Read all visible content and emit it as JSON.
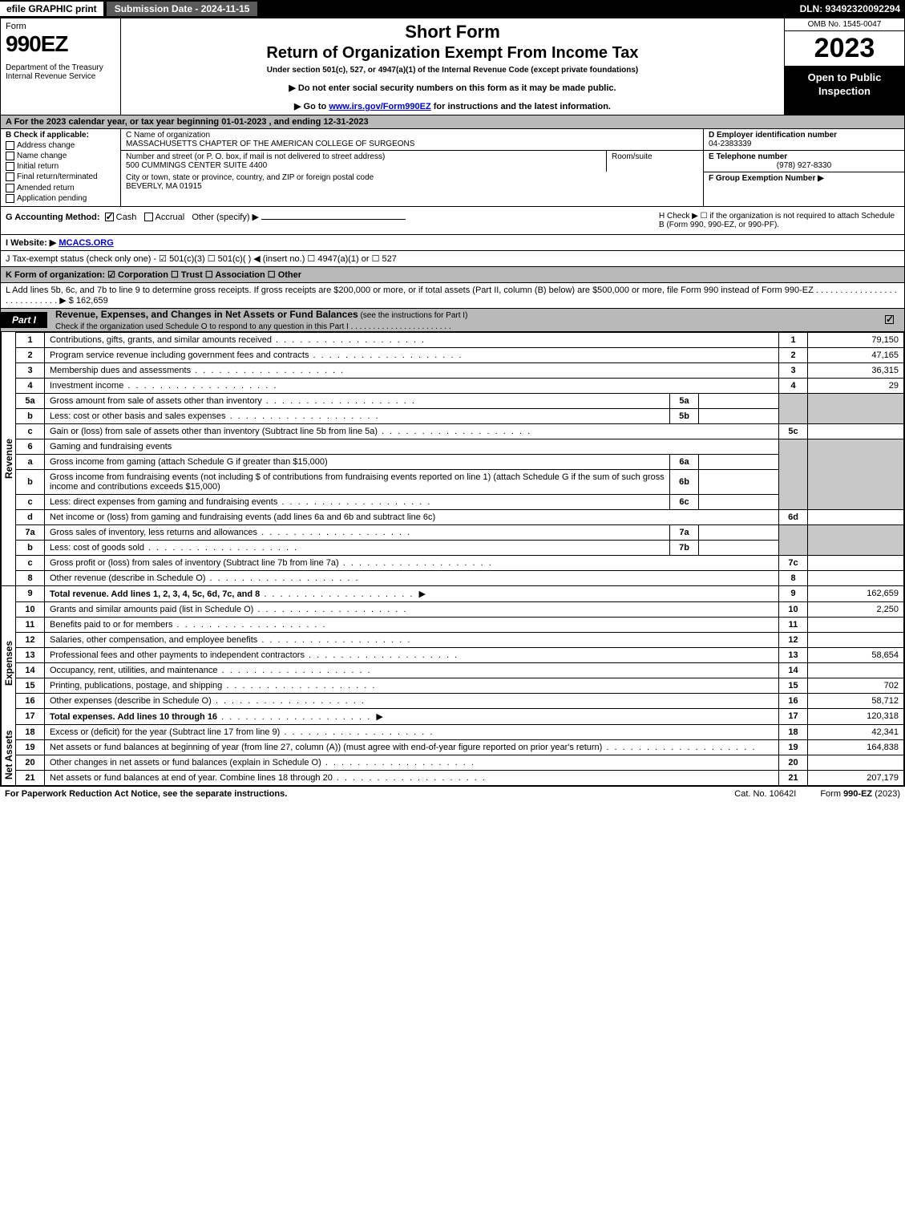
{
  "topbar": {
    "efile": "efile GRAPHIC print",
    "submission": "Submission Date - 2024-11-15",
    "dln": "DLN: 93492320092294"
  },
  "header": {
    "form_word": "Form",
    "form_number": "990EZ",
    "dept": "Department of the Treasury\nInternal Revenue Service",
    "short_form": "Short Form",
    "return_title": "Return of Organization Exempt From Income Tax",
    "subtitle": "Under section 501(c), 527, or 4947(a)(1) of the Internal Revenue Code (except private foundations)",
    "note1": "▶ Do not enter social security numbers on this form as it may be made public.",
    "note2_pre": "▶ Go to ",
    "note2_link": "www.irs.gov/Form990EZ",
    "note2_post": " for instructions and the latest information.",
    "omb": "OMB No. 1545-0047",
    "year": "2023",
    "open": "Open to Public Inspection"
  },
  "row_a": "A  For the 2023 calendar year, or tax year beginning 01-01-2023  , and ending 12-31-2023",
  "col_b": {
    "title": "B  Check if applicable:",
    "items": [
      "Address change",
      "Name change",
      "Initial return",
      "Final return/terminated",
      "Amended return",
      "Application pending"
    ]
  },
  "col_c": {
    "name_label": "C Name of organization",
    "name": "MASSACHUSETTS CHAPTER OF THE AMERICAN COLLEGE OF SURGEONS",
    "street_label": "Number and street (or P. O. box, if mail is not delivered to street address)",
    "street": "500 CUMMINGS CENTER SUITE 4400",
    "suite_label": "Room/suite",
    "city_label": "City or town, state or province, country, and ZIP or foreign postal code",
    "city": "BEVERLY, MA  01915"
  },
  "col_def": {
    "d_label": "D Employer identification number",
    "d_value": "04-2383339",
    "e_label": "E Telephone number",
    "e_value": "(978) 927-8330",
    "f_label": "F Group Exemption Number   ▶"
  },
  "gh": {
    "g_label": "G Accounting Method:",
    "g_cash": "Cash",
    "g_accrual": "Accrual",
    "g_other": "Other (specify) ▶",
    "h_text": "H  Check ▶  ☐  if the organization is not required to attach Schedule B (Form 990, 990-EZ, or 990-PF).",
    "i_label": "I Website: ▶",
    "i_value": "MCACS.ORG",
    "j_text": "J Tax-exempt status (check only one) -  ☑ 501(c)(3)  ☐ 501(c)(  ) ◀ (insert no.)  ☐ 4947(a)(1) or  ☐ 527",
    "k_text": "K Form of organization:   ☑ Corporation   ☐ Trust   ☐ Association   ☐ Other",
    "l_text": "L Add lines 5b, 6c, and 7b to line 9 to determine gross receipts. If gross receipts are $200,000 or more, or if total assets (Part II, column (B) below) are $500,000 or more, file Form 990 instead of Form 990-EZ  .  .  .  .  .  .  .  .  .  .  .  .  .  .  .  .  .  .  .  .  .  .  .  .  .  .  .  .   ▶ $ 162,659"
  },
  "part1": {
    "tab": "Part I",
    "title": "Revenue, Expenses, and Changes in Net Assets or Fund Balances",
    "subtitle": " (see the instructions for Part I)",
    "check_line": "Check if the organization used Schedule O to respond to any question in this Part I  .  .  .  .  .  .  .  .  .  .  .  .  .  .  .  .  .  .  .  .  .  .  . "
  },
  "revenue_side": "Revenue",
  "expenses_side": "Expenses",
  "netassets_side": "Net Assets",
  "lines": {
    "l1": {
      "num": "1",
      "desc": "Contributions, gifts, grants, and similar amounts received",
      "box": "1",
      "amt": "79,150"
    },
    "l2": {
      "num": "2",
      "desc": "Program service revenue including government fees and contracts",
      "box": "2",
      "amt": "47,165"
    },
    "l3": {
      "num": "3",
      "desc": "Membership dues and assessments",
      "box": "3",
      "amt": "36,315"
    },
    "l4": {
      "num": "4",
      "desc": "Investment income",
      "box": "4",
      "amt": "29"
    },
    "l5a": {
      "num": "5a",
      "desc": "Gross amount from sale of assets other than inventory",
      "ibox": "5a"
    },
    "l5b": {
      "num": "b",
      "desc": "Less: cost or other basis and sales expenses",
      "ibox": "5b"
    },
    "l5c": {
      "num": "c",
      "desc": "Gain or (loss) from sale of assets other than inventory (Subtract line 5b from line 5a)",
      "box": "5c"
    },
    "l6": {
      "num": "6",
      "desc": "Gaming and fundraising events"
    },
    "l6a": {
      "num": "a",
      "desc": "Gross income from gaming (attach Schedule G if greater than $15,000)",
      "ibox": "6a"
    },
    "l6b": {
      "num": "b",
      "desc": "Gross income from fundraising events (not including $                   of contributions from fundraising events reported on line 1) (attach Schedule G if the sum of such gross income and contributions exceeds $15,000)",
      "ibox": "6b"
    },
    "l6c": {
      "num": "c",
      "desc": "Less: direct expenses from gaming and fundraising events",
      "ibox": "6c"
    },
    "l6d": {
      "num": "d",
      "desc": "Net income or (loss) from gaming and fundraising events (add lines 6a and 6b and subtract line 6c)",
      "box": "6d"
    },
    "l7a": {
      "num": "7a",
      "desc": "Gross sales of inventory, less returns and allowances",
      "ibox": "7a"
    },
    "l7b": {
      "num": "b",
      "desc": "Less: cost of goods sold",
      "ibox": "7b"
    },
    "l7c": {
      "num": "c",
      "desc": "Gross profit or (loss) from sales of inventory (Subtract line 7b from line 7a)",
      "box": "7c"
    },
    "l8": {
      "num": "8",
      "desc": "Other revenue (describe in Schedule O)",
      "box": "8"
    },
    "l9": {
      "num": "9",
      "desc": "Total revenue. Add lines 1, 2, 3, 4, 5c, 6d, 7c, and 8",
      "box": "9",
      "amt": "162,659",
      "bold": true
    },
    "l10": {
      "num": "10",
      "desc": "Grants and similar amounts paid (list in Schedule O)",
      "box": "10",
      "amt": "2,250"
    },
    "l11": {
      "num": "11",
      "desc": "Benefits paid to or for members",
      "box": "11"
    },
    "l12": {
      "num": "12",
      "desc": "Salaries, other compensation, and employee benefits",
      "box": "12"
    },
    "l13": {
      "num": "13",
      "desc": "Professional fees and other payments to independent contractors",
      "box": "13",
      "amt": "58,654"
    },
    "l14": {
      "num": "14",
      "desc": "Occupancy, rent, utilities, and maintenance",
      "box": "14"
    },
    "l15": {
      "num": "15",
      "desc": "Printing, publications, postage, and shipping",
      "box": "15",
      "amt": "702"
    },
    "l16": {
      "num": "16",
      "desc": "Other expenses (describe in Schedule O)",
      "box": "16",
      "amt": "58,712"
    },
    "l17": {
      "num": "17",
      "desc": "Total expenses. Add lines 10 through 16",
      "box": "17",
      "amt": "120,318",
      "bold": true
    },
    "l18": {
      "num": "18",
      "desc": "Excess or (deficit) for the year (Subtract line 17 from line 9)",
      "box": "18",
      "amt": "42,341"
    },
    "l19": {
      "num": "19",
      "desc": "Net assets or fund balances at beginning of year (from line 27, column (A)) (must agree with end-of-year figure reported on prior year's return)",
      "box": "19",
      "amt": "164,838"
    },
    "l20": {
      "num": "20",
      "desc": "Other changes in net assets or fund balances (explain in Schedule O)",
      "box": "20"
    },
    "l21": {
      "num": "21",
      "desc": "Net assets or fund balances at end of year. Combine lines 18 through 20",
      "box": "21",
      "amt": "207,179"
    }
  },
  "footer": {
    "left": "For Paperwork Reduction Act Notice, see the separate instructions.",
    "mid": "Cat. No. 10642I",
    "right_pre": "Form ",
    "right_bold": "990-EZ",
    "right_post": " (2023)"
  },
  "colors": {
    "gray_band": "#b9b9b9",
    "gray_cell": "#c8c8c8",
    "black": "#000000",
    "white": "#ffffff",
    "link": "#0000cc"
  }
}
